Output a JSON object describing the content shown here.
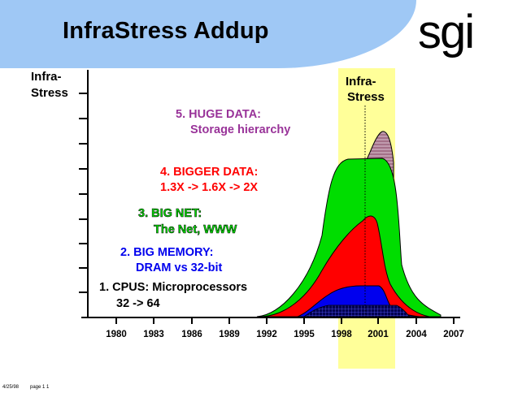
{
  "slide": {
    "title": "InfraStress Addup",
    "logo": "sgi",
    "footer": {
      "date": "4/25/98",
      "page": "page 1 1"
    }
  },
  "colors": {
    "title_band": "#9fc8f5",
    "highlight": "#ffff99",
    "cpus": "#000000",
    "memory": "#0000ee",
    "net": "#00dd00",
    "bigger_data": "#ff0000",
    "huge_data": "#b36a8a"
  },
  "diagram": {
    "y_axis_label": [
      "Infra-",
      "Stress"
    ],
    "highlight_label": [
      "Infra-",
      "Stress"
    ],
    "x_ticks": [
      "1980",
      "1983",
      "1986",
      "1989",
      "1992",
      "1995",
      "1998",
      "2001",
      "2004",
      "2007"
    ],
    "layers": [
      {
        "label_line1": "5. HUGE DATA:",
        "label_line2": "Storage hierarchy"
      },
      {
        "label_line1": "4. BIGGER DATA:",
        "label_line2": "1.3X -> 1.6X -> 2X"
      },
      {
        "label_line1": "3. BIG NET:",
        "label_line2": "The Net, WWW"
      },
      {
        "label_line1": "2. BIG MEMORY:",
        "label_line2": "DRAM vs 32-bit"
      },
      {
        "label_line1": "1. CPUS: Microprocessors",
        "label_line2": "32 -> 64"
      }
    ]
  }
}
